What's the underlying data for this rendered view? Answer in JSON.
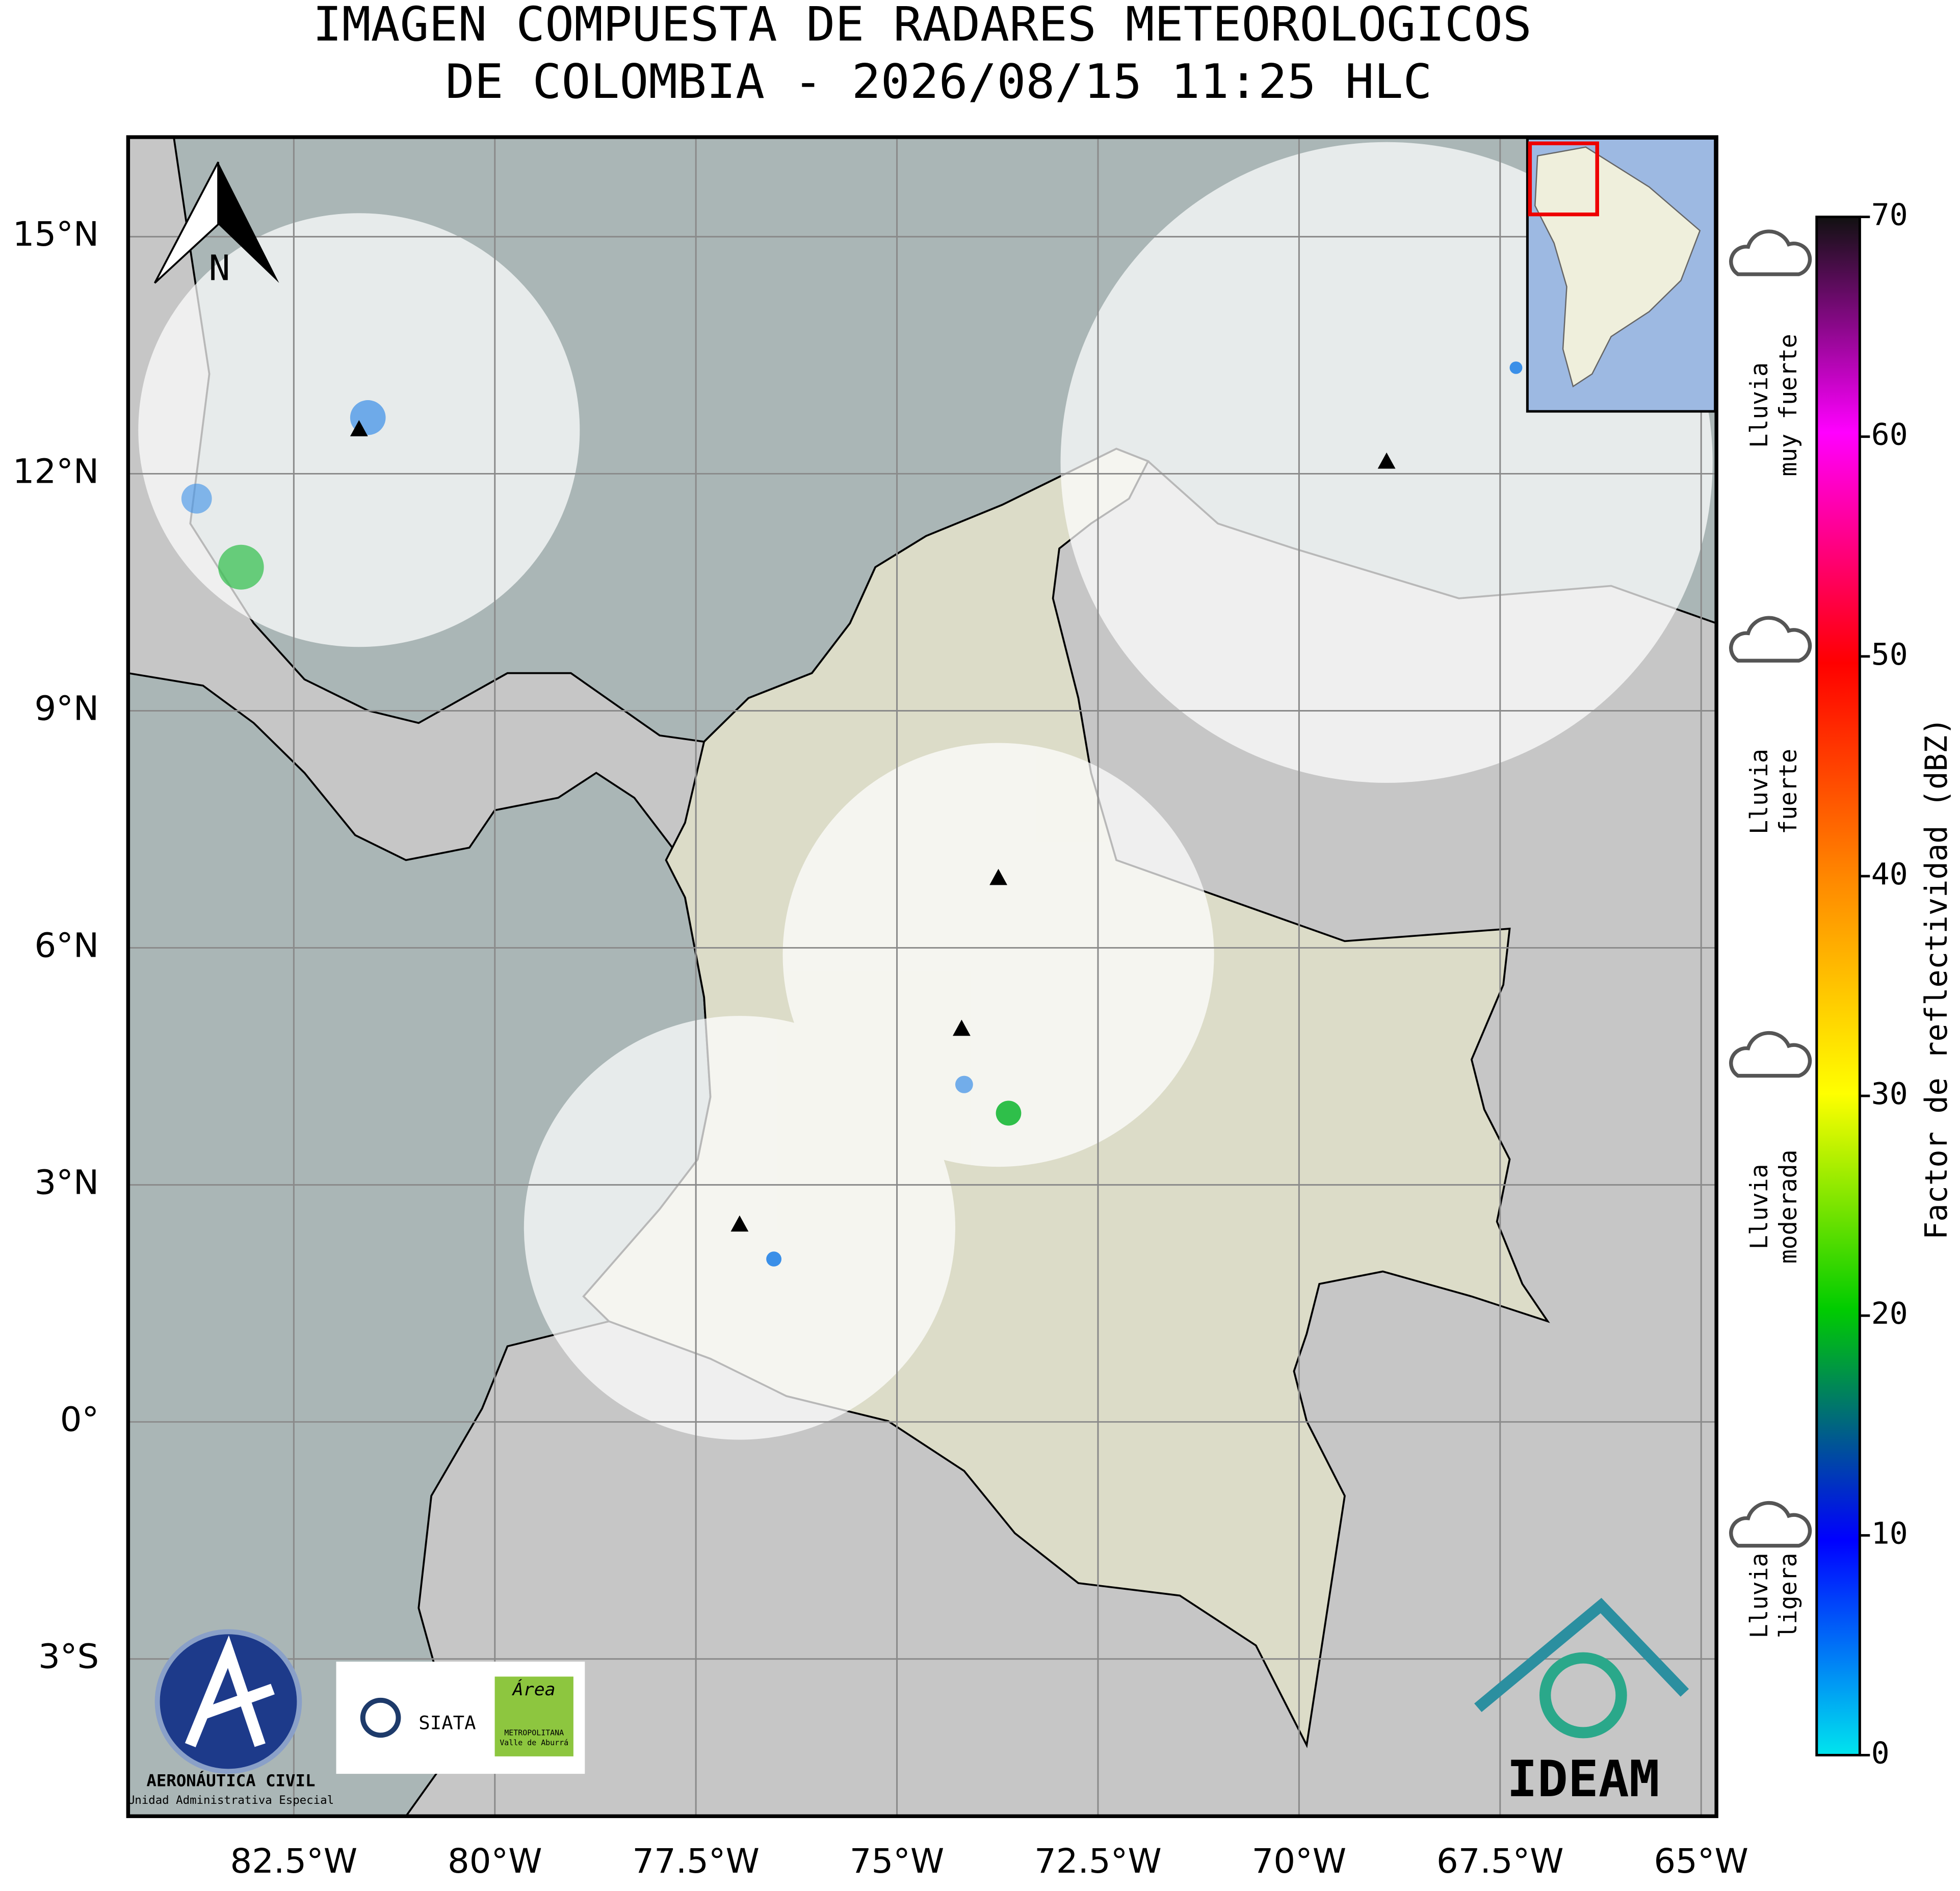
{
  "title_lines": [
    "IMAGEN COMPUESTA DE RADARES METEOROLOGICOS",
    "DE COLOMBIA - 2026/08/15 11:25 HLC"
  ],
  "map": {
    "lonlim": [
      -84.56,
      -64.81
    ],
    "latlim": [
      -4.99,
      16.26
    ],
    "lon_ticks": [
      {
        "value": -82.5,
        "label": "82.5°W"
      },
      {
        "value": -80,
        "label": "80°W"
      },
      {
        "value": -77.5,
        "label": "77.5°W"
      },
      {
        "value": -75,
        "label": "75°W"
      },
      {
        "value": -72.5,
        "label": "72.5°W"
      },
      {
        "value": -70,
        "label": "70°W"
      },
      {
        "value": -67.5,
        "label": "67.5°W"
      },
      {
        "value": -65,
        "label": "65°W"
      }
    ],
    "lat_ticks": [
      {
        "value": 15,
        "label": "15°N"
      },
      {
        "value": 12,
        "label": "12°N"
      },
      {
        "value": 9,
        "label": "9°N"
      },
      {
        "value": 6,
        "label": "6°N"
      },
      {
        "value": 3,
        "label": "3°N"
      },
      {
        "value": 0,
        "label": "0°"
      },
      {
        "value": -3,
        "label": "3°S"
      }
    ],
    "north_label": "N"
  },
  "colorbar": {
    "label": "Factor de reflectividad (dBZ)",
    "lim": [
      0,
      70
    ],
    "ticks": [
      0,
      10,
      20,
      30,
      40,
      50,
      60,
      70
    ]
  },
  "rain_levels": [
    {
      "lines": [
        "Lluvia",
        "muy fuerte"
      ],
      "level": 65
    },
    {
      "lines": [
        "Lluvia",
        "fuerte"
      ],
      "level": 50
    },
    {
      "lines": [
        "Lluvia",
        "moderada"
      ],
      "level": 30
    },
    {
      "lines": [
        "Lluvia",
        "ligera"
      ],
      "level": 6
    }
  ],
  "logos": {
    "aerocivil": [
      "AERONÁUTICA CIVIL",
      "Unidad Administrativa Especial"
    ],
    "siata": "SIATA",
    "area": [
      "Área",
      "METROPOLITANA",
      "Valle de Aburrá"
    ],
    "ideam": "IDEAM"
  }
}
